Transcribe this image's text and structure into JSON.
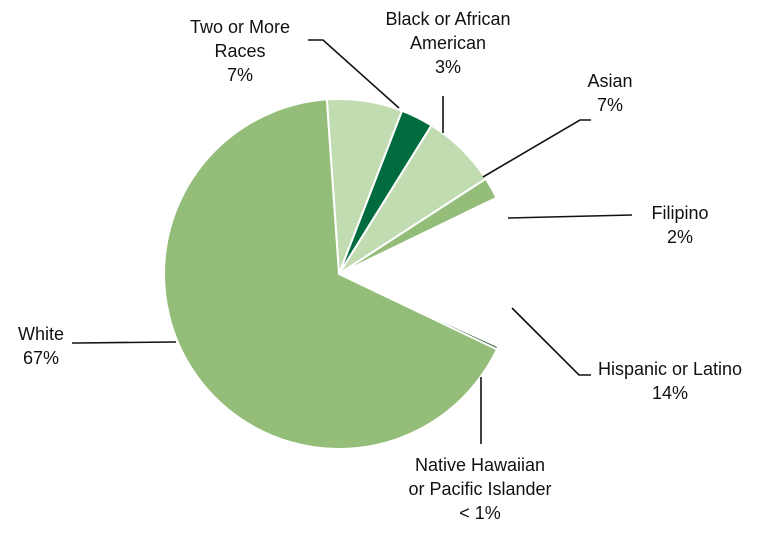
{
  "chart_data": {
    "type": "pie",
    "title": "",
    "slices": [
      {
        "category": "Two or More Races",
        "label_lines": [
          "Two or More",
          "Races"
        ],
        "value_label": "7%",
        "value": 7,
        "color": "#c2dcb2"
      },
      {
        "category": "Black or African American",
        "label_lines": [
          "Black or African",
          "American"
        ],
        "value_label": "3%",
        "value": 3,
        "color": "#006b3c"
      },
      {
        "category": "Asian",
        "label_lines": [
          "Asian"
        ],
        "value_label": "7%",
        "value": 7,
        "color": "#c2dcb2"
      },
      {
        "category": "Filipino",
        "label_lines": [
          "Filipino"
        ],
        "value_label": "2%",
        "value": 2,
        "color": "#93bd78"
      },
      {
        "category": "Hispanic or Latino",
        "label_lines": [
          "Hispanic or Latino"
        ],
        "value_label": "14%",
        "value": 14,
        "color": "#ffffff"
      },
      {
        "category": "Native Hawaiian or Pacific Islander",
        "label_lines": [
          "Native Hawaiian",
          "or Pacific Islander"
        ],
        "value_label": "< 1%",
        "value": 0.3,
        "color": "#2e6b3c"
      },
      {
        "category": "White",
        "label_lines": [
          "White"
        ],
        "value_label": "67%",
        "value": 67,
        "color": "#93bd78"
      }
    ]
  }
}
